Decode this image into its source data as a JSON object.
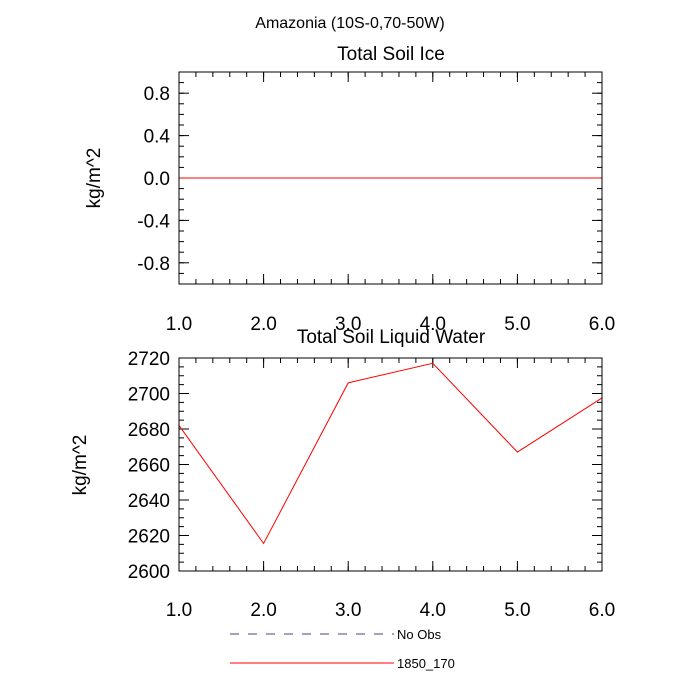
{
  "figure_title": "Amazonia (10S-0,70-50W)",
  "chart_data": [
    {
      "type": "line",
      "title": "Total Soil Ice",
      "xlabel": "",
      "ylabel": "kg/m^2",
      "xlim": [
        1.0,
        6.0
      ],
      "ylim": [
        -1.0,
        1.0
      ],
      "xticks": [
        1.0,
        2.0,
        3.0,
        4.0,
        5.0,
        6.0
      ],
      "xtick_labels": [
        "1.0",
        "2.0",
        "3.0",
        "4.0",
        "5.0",
        "6.0"
      ],
      "yticks": [
        -0.8,
        -0.4,
        0.0,
        0.4,
        0.8
      ],
      "ytick_labels": [
        "-0.8",
        "-0.4",
        "0.0",
        "0.4",
        "0.8"
      ],
      "series": [
        {
          "name": "1850_170",
          "color": "#ff0000",
          "x": [
            1,
            2,
            3,
            4,
            5,
            6
          ],
          "values": [
            0,
            0,
            0,
            0,
            0,
            0
          ]
        }
      ]
    },
    {
      "type": "line",
      "title": "Total Soil Liquid Water",
      "xlabel": "",
      "ylabel": "kg/m^2",
      "xlim": [
        1.0,
        6.0
      ],
      "ylim": [
        2600,
        2720
      ],
      "xticks": [
        1.0,
        2.0,
        3.0,
        4.0,
        5.0,
        6.0
      ],
      "xtick_labels": [
        "1.0",
        "2.0",
        "3.0",
        "4.0",
        "5.0",
        "6.0"
      ],
      "yticks": [
        2600,
        2620,
        2640,
        2660,
        2680,
        2700,
        2720
      ],
      "ytick_labels": [
        "2600",
        "2620",
        "2640",
        "2660",
        "2680",
        "2700",
        "2720"
      ],
      "series": [
        {
          "name": "1850_170",
          "color": "#ff0000",
          "x": [
            1,
            2,
            3,
            4,
            5,
            6
          ],
          "values": [
            2682,
            2615.5,
            2706,
            2717,
            2667,
            2697.5
          ]
        }
      ]
    }
  ],
  "legend": {
    "entries": [
      {
        "label": "No Obs",
        "color": "#3d4a7a",
        "style": "dashed"
      },
      {
        "label": "1850_170",
        "color": "#ff0000",
        "style": "solid"
      }
    ]
  }
}
